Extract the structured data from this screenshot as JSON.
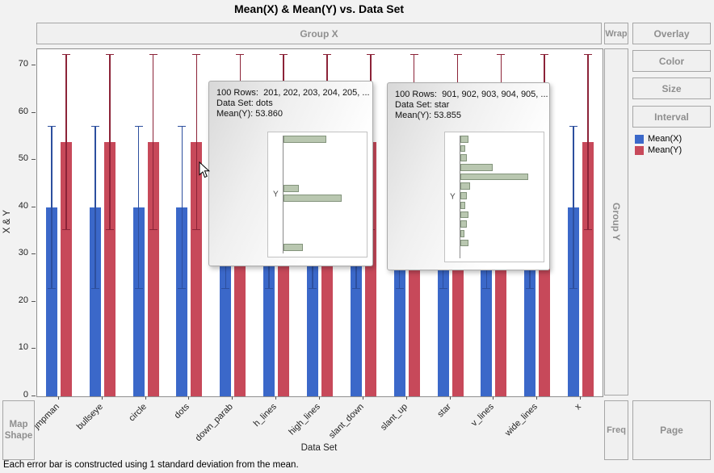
{
  "title": "Mean(X) & Mean(Y) vs. Data Set",
  "footnote": "Each error bar is constructed using 1 standard deviation from the mean.",
  "zones": {
    "group_x": "Group X",
    "group_y": "Group Y",
    "wrap": "Wrap",
    "overlay": "Overlay",
    "color": "Color",
    "size": "Size",
    "interval": "Interval",
    "freq": "Freq",
    "page": "Page",
    "map_shape_line1": "Map",
    "map_shape_line2": "Shape"
  },
  "axes": {
    "ylabel": "X & Y",
    "xlabel": "Data Set"
  },
  "legend": {
    "items": [
      {
        "label": "Mean(X)",
        "color": "#3b68c9"
      },
      {
        "label": "Mean(Y)",
        "color": "#c7495a"
      }
    ]
  },
  "chart_data": {
    "type": "bar",
    "title": "Mean(X) & Mean(Y) vs. Data Set",
    "categories": [
      "jmpman",
      "bullseye",
      "circle",
      "dots",
      "down_parab",
      "h_lines",
      "high_lines",
      "slant_down",
      "slant_up",
      "star",
      "v_lines",
      "wide_lines",
      "x"
    ],
    "series": [
      {
        "name": "Mean(X)",
        "color": "#3b68c9",
        "error_color": "#2d4f9e",
        "error": 17.3,
        "values": [
          40,
          40,
          40,
          40,
          40,
          40,
          40,
          40,
          40,
          40,
          40,
          40,
          40
        ]
      },
      {
        "name": "Mean(Y)",
        "color": "#c7495a",
        "error_color": "#8c2338",
        "error": 18.65,
        "values": [
          53.86,
          53.86,
          53.86,
          53.86,
          53.86,
          53.86,
          53.86,
          53.86,
          53.86,
          53.855,
          53.86,
          53.86,
          53.86
        ]
      }
    ],
    "xlabel": "Data Set",
    "ylabel": "X & Y",
    "ylim": [
      0,
      73.5
    ],
    "yticks": [
      0,
      10,
      20,
      30,
      40,
      50,
      60,
      70
    ],
    "grid": false,
    "legend_position": "right"
  },
  "tooltips": [
    {
      "line1": "100 Rows:  201, 202, 203, 204, 205, ...",
      "line2": "Data Set: dots",
      "line3": "Mean(Y): 53.860",
      "hist_label": "Y",
      "hist_bars": [
        0.55,
        0,
        0,
        0,
        0,
        0.2,
        0.75,
        0,
        0,
        0,
        0,
        0.25
      ]
    },
    {
      "line1": "100 Rows:  901, 902, 903, 904, 905, ...",
      "line2": "Data Set: star",
      "line3": "Mean(Y): 53.855",
      "hist_label": "Y",
      "hist_bars": [
        0.1,
        0.06,
        0.08,
        0.42,
        0.88,
        0.12,
        0.08,
        0.06,
        0.1,
        0.08,
        0.05,
        0.1,
        0
      ]
    }
  ]
}
